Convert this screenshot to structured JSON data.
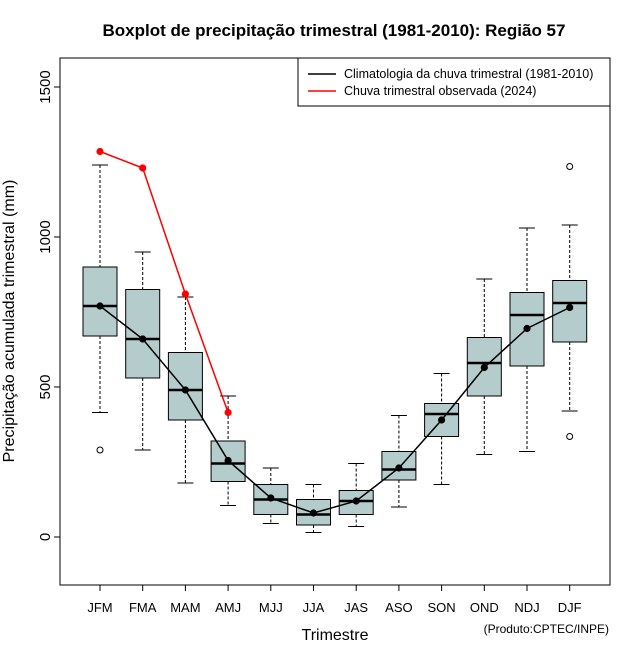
{
  "chart_data": {
    "type": "boxplot",
    "title": "Boxplot de precipitação trimestral (1981-2010): Região 57",
    "xlabel": "Trimestre",
    "ylabel": "Precipitação acumulada trimestral (mm)",
    "ylim": [
      -160,
      1600
    ],
    "yticks": [
      0,
      500,
      1000,
      1500
    ],
    "credit": "(Produto:CPTEC/INPE)",
    "categories": [
      "JFM",
      "FMA",
      "MAM",
      "AMJ",
      "MJJ",
      "JJA",
      "JAS",
      "ASO",
      "SON",
      "OND",
      "NDJ",
      "DJF"
    ],
    "box_color": "#b5cccc",
    "boxes": [
      {
        "whisker_low": 415,
        "q1": 670,
        "median": 770,
        "q3": 900,
        "whisker_high": 1240,
        "outliers": [
          290
        ]
      },
      {
        "whisker_low": 290,
        "q1": 530,
        "median": 660,
        "q3": 825,
        "whisker_high": 950,
        "outliers": []
      },
      {
        "whisker_low": 180,
        "q1": 390,
        "median": 490,
        "q3": 615,
        "whisker_high": 800,
        "outliers": []
      },
      {
        "whisker_low": 105,
        "q1": 185,
        "median": 245,
        "q3": 320,
        "whisker_high": 470,
        "outliers": []
      },
      {
        "whisker_low": 45,
        "q1": 75,
        "median": 125,
        "q3": 175,
        "whisker_high": 230,
        "outliers": []
      },
      {
        "whisker_low": 15,
        "q1": 40,
        "median": 75,
        "q3": 125,
        "whisker_high": 175,
        "outliers": []
      },
      {
        "whisker_low": 35,
        "q1": 75,
        "median": 120,
        "q3": 155,
        "whisker_high": 245,
        "outliers": []
      },
      {
        "whisker_low": 100,
        "q1": 190,
        "median": 225,
        "q3": 285,
        "whisker_high": 405,
        "outliers": []
      },
      {
        "whisker_low": 175,
        "q1": 335,
        "median": 410,
        "q3": 445,
        "whisker_high": 545,
        "outliers": []
      },
      {
        "whisker_low": 275,
        "q1": 470,
        "median": 580,
        "q3": 665,
        "whisker_high": 860,
        "outliers": []
      },
      {
        "whisker_low": 285,
        "q1": 570,
        "median": 740,
        "q3": 815,
        "whisker_high": 1030,
        "outliers": []
      },
      {
        "whisker_low": 420,
        "q1": 650,
        "median": 780,
        "q3": 855,
        "whisker_high": 1040,
        "outliers": [
          335,
          1235
        ]
      }
    ],
    "series": [
      {
        "name": "Climatologia da chuva trimestral (1981-2010)",
        "color": "#000000",
        "values": [
          770,
          660,
          490,
          255,
          130,
          80,
          120,
          230,
          390,
          565,
          695,
          765
        ]
      },
      {
        "name": "Chuva trimestral observada (2024)",
        "color": "#ff0000",
        "values": [
          1285,
          1230,
          810,
          415
        ]
      }
    ],
    "legend_position": "top-right"
  }
}
